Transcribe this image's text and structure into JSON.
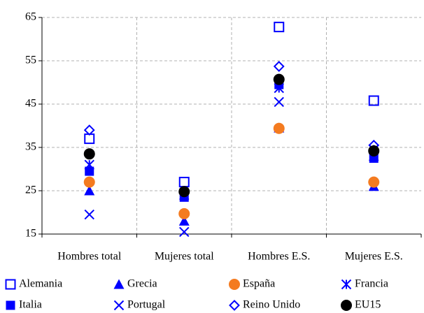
{
  "chart_data": {
    "type": "category-scatter",
    "categories": [
      "Hombres total",
      "Mujeres total",
      "Hombres E.S.",
      "Mujeres E.S."
    ],
    "ylim": [
      15,
      65
    ],
    "yticks": [
      15,
      25,
      35,
      45,
      55,
      65
    ],
    "grid": true,
    "series": [
      {
        "name": "Alemania",
        "color": "#0000ff",
        "marker": "square-open",
        "values": [
          37,
          27,
          62.8,
          45.8
        ]
      },
      {
        "name": "Grecia",
        "color": "#0000ff",
        "marker": "triangle",
        "values": [
          25,
          18,
          39.5,
          26
        ]
      },
      {
        "name": "España",
        "color": "#f47b20",
        "marker": "circle",
        "values": [
          27,
          19.7,
          39.4,
          27
        ]
      },
      {
        "name": "Francia",
        "color": "#0000ff",
        "marker": "asterisk",
        "values": [
          31,
          24,
          48.7,
          34.5
        ]
      },
      {
        "name": "Italia",
        "color": "#0000ff",
        "marker": "square",
        "values": [
          29.5,
          23.5,
          49.5,
          32.5
        ]
      },
      {
        "name": "Portugal",
        "color": "#0000ff",
        "marker": "x",
        "values": [
          19.5,
          15.5,
          45.5,
          33
        ]
      },
      {
        "name": "Reino Unido",
        "color": "#0000ff",
        "marker": "diamond-open",
        "values": [
          39,
          24.5,
          53.7,
          35.5
        ]
      },
      {
        "name": "EU15",
        "color": "#000000",
        "marker": "circle",
        "values": [
          33.5,
          24.8,
          50.7,
          34.2
        ]
      }
    ]
  }
}
